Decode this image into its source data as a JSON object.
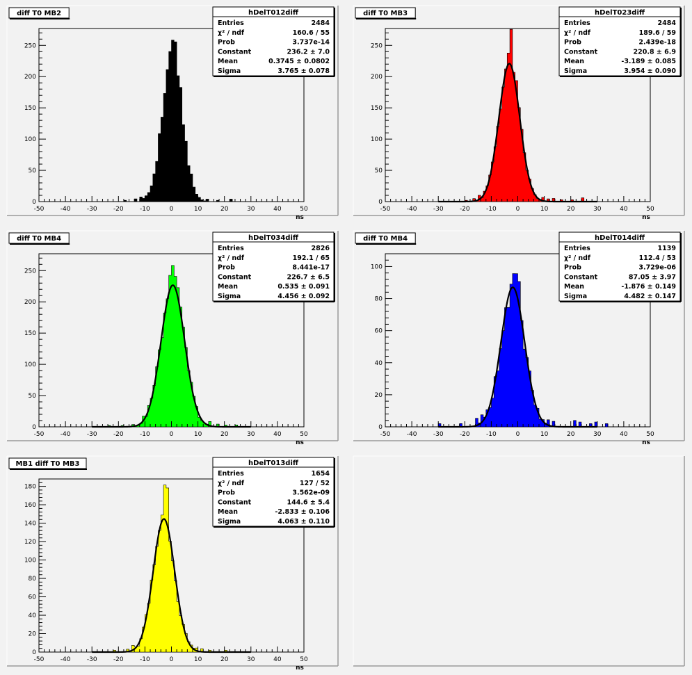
{
  "colors": {
    "canvas_bg": "#f2f2f2",
    "pad_bg": "#f2f2f2",
    "frame": "#000000",
    "fit_curve": "#000000"
  },
  "chart_data": [
    {
      "type": "bar",
      "pad_title": "diff T0 MB2",
      "hist_name": "hDelT012diff",
      "fill": "#000000",
      "xlabel": "ns",
      "xlim": [
        -50,
        50
      ],
      "ylim": [
        0,
        277
      ],
      "xticks": [
        -50,
        -40,
        -30,
        -20,
        -10,
        0,
        10,
        20,
        30,
        40,
        50
      ],
      "yticks": [
        0,
        50,
        100,
        150,
        200,
        250
      ],
      "fit": {
        "constant": 236.2,
        "mean": 0.3745,
        "sigma": 3.765,
        "draw_curve": false
      },
      "spikes": [
        [
          -1,
          8
        ],
        [
          0,
          22
        ],
        [
          1,
          35
        ],
        [
          2,
          -10
        ],
        [
          3,
          6
        ],
        [
          -12,
          6
        ],
        [
          -14,
          4
        ],
        [
          13,
          4
        ],
        [
          17,
          2
        ],
        [
          22,
          4
        ],
        [
          -18,
          2
        ]
      ],
      "stats": [
        {
          "label": "Entries",
          "value": "2484"
        },
        {
          "label": "χ² / ndf",
          "value": "160.6 / 55"
        },
        {
          "label": "Prob",
          "value": "3.737e-14"
        },
        {
          "label": "Constant",
          "value": "236.2 ± 7.0"
        },
        {
          "label": "Mean",
          "value": "0.3745 ± 0.0802"
        },
        {
          "label": "Sigma",
          "value": "3.765 ± 0.078"
        }
      ]
    },
    {
      "type": "bar",
      "pad_title": "diff T0 MB3",
      "hist_name": "hDelT023diff",
      "fill": "#ff0000",
      "xlabel": "ns",
      "xlim": [
        -50,
        50
      ],
      "ylim": [
        0,
        277
      ],
      "xticks": [
        -50,
        -40,
        -30,
        -20,
        -10,
        0,
        10,
        20,
        30,
        40,
        50
      ],
      "yticks": [
        0,
        50,
        100,
        150,
        200,
        250
      ],
      "fit": {
        "constant": 220.8,
        "mean": -3.189,
        "sigma": 3.954,
        "draw_curve": true
      },
      "spikes": [
        [
          -3,
          55
        ],
        [
          -4,
          8
        ],
        [
          -2,
          12
        ],
        [
          -1,
          10
        ],
        [
          -17,
          4
        ],
        [
          -15,
          5
        ],
        [
          9,
          5
        ],
        [
          11,
          4
        ],
        [
          13,
          5
        ],
        [
          16,
          3
        ],
        [
          24,
          6
        ],
        [
          20,
          3
        ],
        [
          -20,
          2
        ]
      ],
      "stats": [
        {
          "label": "Entries",
          "value": "2484"
        },
        {
          "label": "χ² / ndf",
          "value": "189.6 / 59"
        },
        {
          "label": "Prob",
          "value": "2.439e-18"
        },
        {
          "label": "Constant",
          "value": "220.8 ± 6.9"
        },
        {
          "label": "Mean",
          "value": "-3.189 ± 0.085"
        },
        {
          "label": "Sigma",
          "value": "3.954 ± 0.090"
        }
      ]
    },
    {
      "type": "bar",
      "pad_title": "diff T0 MB4",
      "hist_name": "hDelT034diff",
      "fill": "#00ff00",
      "xlabel": "ns",
      "xlim": [
        -50,
        50
      ],
      "ylim": [
        0,
        277
      ],
      "xticks": [
        -50,
        -40,
        -30,
        -20,
        -10,
        0,
        10,
        20,
        30,
        40,
        50
      ],
      "yticks": [
        0,
        50,
        100,
        150,
        200,
        250
      ],
      "fit": {
        "constant": 226.7,
        "mean": 0.535,
        "sigma": 4.456,
        "draw_curve": true
      },
      "spikes": [
        [
          0,
          35
        ],
        [
          1,
          30
        ],
        [
          -1,
          10
        ],
        [
          2,
          8
        ],
        [
          -11,
          6
        ],
        [
          -9,
          5
        ],
        [
          14,
          6
        ],
        [
          17,
          4
        ],
        [
          20,
          3
        ],
        [
          24,
          3
        ],
        [
          -15,
          3
        ],
        [
          -19,
          2
        ],
        [
          -24,
          2
        ]
      ],
      "stats": [
        {
          "label": "Entries",
          "value": "2826"
        },
        {
          "label": "χ² / ndf",
          "value": "192.1 / 65"
        },
        {
          "label": "Prob",
          "value": "8.441e-17"
        },
        {
          "label": "Constant",
          "value": "226.7 ± 6.5"
        },
        {
          "label": "Mean",
          "value": "0.535 ± 0.091"
        },
        {
          "label": "Sigma",
          "value": "4.456 ± 0.092"
        }
      ]
    },
    {
      "type": "bar",
      "pad_title": "diff T0 MB4",
      "hist_name": "hDelT014diff",
      "fill": "#0000ff",
      "xlabel": "ns",
      "xlim": [
        -50,
        50
      ],
      "ylim": [
        0,
        108
      ],
      "xticks": [
        -50,
        -40,
        -30,
        -20,
        -10,
        0,
        10,
        20,
        30,
        40,
        50
      ],
      "yticks": [
        0,
        20,
        40,
        60,
        80,
        100
      ],
      "fit": {
        "constant": 87.05,
        "mean": -1.876,
        "sigma": 4.482,
        "draw_curve": true
      },
      "spikes": [
        [
          0,
          16
        ],
        [
          -1,
          6
        ],
        [
          -2,
          4
        ],
        [
          1,
          -4
        ],
        [
          -16,
          5
        ],
        [
          -14,
          4
        ],
        [
          -12,
          3
        ],
        [
          -30,
          2
        ],
        [
          -22,
          2
        ],
        [
          11,
          4
        ],
        [
          13,
          3
        ],
        [
          21,
          4
        ],
        [
          23,
          3
        ],
        [
          27,
          2
        ],
        [
          29,
          3
        ],
        [
          33,
          2
        ]
      ],
      "stats": [
        {
          "label": "Entries",
          "value": "1139"
        },
        {
          "label": "χ² / ndf",
          "value": "112.4 / 53"
        },
        {
          "label": "Prob",
          "value": "3.729e-06"
        },
        {
          "label": "Constant",
          "value": "87.05 ± 3.97"
        },
        {
          "label": "Mean",
          "value": "-1.876 ± 0.149"
        },
        {
          "label": "Sigma",
          "value": "4.482 ± 0.147"
        }
      ]
    },
    {
      "type": "bar",
      "pad_title": "MB1 diff T0 MB3",
      "hist_name": "hDelT013diff",
      "fill": "#ffff00",
      "xlabel": "ns",
      "xlim": [
        -50,
        50
      ],
      "ylim": [
        0,
        188
      ],
      "xticks": [
        -50,
        -40,
        -30,
        -20,
        -10,
        0,
        10,
        20,
        30,
        40,
        50
      ],
      "yticks": [
        0,
        20,
        40,
        60,
        80,
        100,
        120,
        140,
        160,
        180
      ],
      "fit": {
        "constant": 144.6,
        "mean": -2.833,
        "sigma": 4.063,
        "draw_curve": true
      },
      "spikes": [
        [
          -3,
          35
        ],
        [
          -2,
          38
        ],
        [
          -4,
          10
        ],
        [
          -1,
          6
        ],
        [
          -15,
          4
        ],
        [
          -17,
          3
        ],
        [
          9,
          3
        ],
        [
          11,
          3
        ],
        [
          14,
          2
        ],
        [
          20,
          2
        ],
        [
          -22,
          2
        ]
      ],
      "stats": [
        {
          "label": "Entries",
          "value": "1654"
        },
        {
          "label": "χ² / ndf",
          "value": "127 / 52"
        },
        {
          "label": "Prob",
          "value": "3.562e-09"
        },
        {
          "label": "Constant",
          "value": "144.6 ± 5.4"
        },
        {
          "label": "Mean",
          "value": "-2.833 ± 0.106"
        },
        {
          "label": "Sigma",
          "value": "4.063 ± 0.110"
        }
      ]
    }
  ]
}
